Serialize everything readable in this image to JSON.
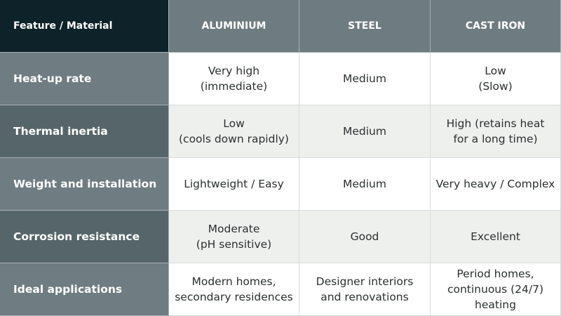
{
  "table": {
    "header": [
      "Feature / Material",
      "ALUMINIUM",
      "STEEL",
      "CAST IRON"
    ],
    "rows": [
      {
        "label": "Heat-up rate",
        "cells": [
          [
            "Very high",
            "(immediate)"
          ],
          [
            "Medium"
          ],
          [
            "Low",
            "(Slow)"
          ]
        ]
      },
      {
        "label": "Thermal inertia",
        "cells": [
          [
            "Low",
            "(cools down rapidly)"
          ],
          [
            "Medium"
          ],
          [
            "High (retains heat",
            "for a long time)"
          ]
        ]
      },
      {
        "label": "Weight and installation",
        "cells": [
          [
            "Lightweight / Easy"
          ],
          [
            "Medium"
          ],
          [
            "Very heavy / Complex"
          ]
        ]
      },
      {
        "label": "Corrosion resistance",
        "cells": [
          [
            "Moderate",
            "(pH sensitive)"
          ],
          [
            "Good"
          ],
          [
            "Excellent"
          ]
        ]
      },
      {
        "label": "Ideal applications",
        "cells": [
          [
            "Modern homes,",
            "secondary residences"
          ],
          [
            "Designer interiors",
            "and renovations"
          ],
          [
            "Period homes,",
            "continuous (24/7)",
            "heating"
          ]
        ]
      }
    ]
  }
}
